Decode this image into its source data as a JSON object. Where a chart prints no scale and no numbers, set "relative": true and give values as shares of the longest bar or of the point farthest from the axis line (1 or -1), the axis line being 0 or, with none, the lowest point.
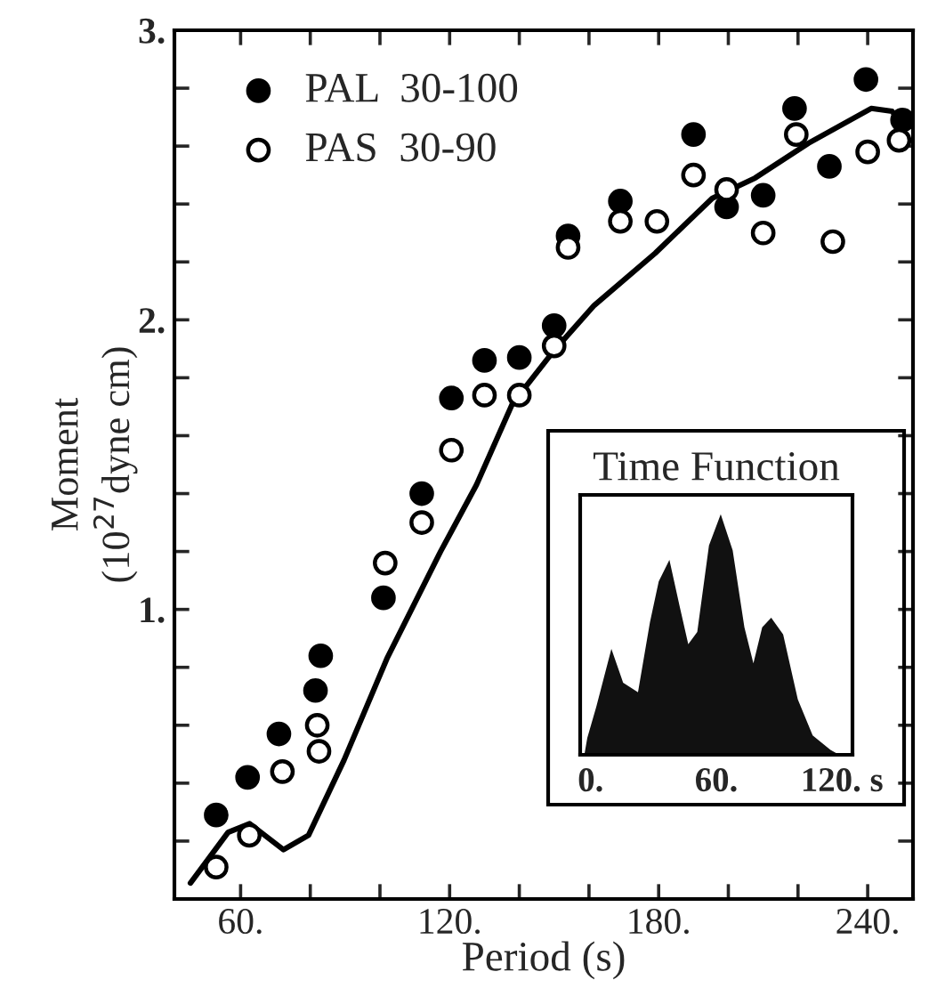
{
  "chart_data": [
    {
      "type": "scatter",
      "xlabel": "Period (s)",
      "ylabel": "Moment\n(10$^{27}$dyne cm)",
      "xlim": [
        41,
        253
      ],
      "ylim": [
        0,
        3
      ],
      "xticks": [
        {
          "value": 60,
          "label": "60."
        },
        {
          "value": 80,
          "label": null
        },
        {
          "value": 100,
          "label": null
        },
        {
          "value": 120,
          "label": "120."
        },
        {
          "value": 140,
          "label": null
        },
        {
          "value": 160,
          "label": null
        },
        {
          "value": 180,
          "label": "180."
        },
        {
          "value": 200,
          "label": null
        },
        {
          "value": 220,
          "label": null
        },
        {
          "value": 240,
          "label": "240."
        }
      ],
      "yticks": [
        {
          "value": 0.2,
          "label": null
        },
        {
          "value": 0.4,
          "label": null
        },
        {
          "value": 0.6,
          "label": null
        },
        {
          "value": 0.8,
          "label": null
        },
        {
          "value": 1,
          "label": "1."
        },
        {
          "value": 1.2,
          "label": null
        },
        {
          "value": 1.4,
          "label": null
        },
        {
          "value": 1.6,
          "label": null
        },
        {
          "value": 1.8,
          "label": null
        },
        {
          "value": 2,
          "label": "2."
        },
        {
          "value": 2.2,
          "label": null
        },
        {
          "value": 2.4,
          "label": null
        },
        {
          "value": 2.6,
          "label": null
        },
        {
          "value": 2.8,
          "label": null
        },
        {
          "value": 3,
          "label": "3."
        }
      ],
      "legend": "top left",
      "grid": false,
      "series": [
        {
          "name": "PAL  30-100",
          "type": "scatter",
          "marker": "circle",
          "color": "#000000",
          "x": [
            53,
            62,
            71,
            81.5,
            83,
            101,
            112,
            120.5,
            130,
            140,
            150,
            154,
            169,
            190,
            199.5,
            210,
            219,
            229,
            239.5,
            250
          ],
          "values": [
            0.29,
            0.42,
            0.57,
            0.72,
            0.84,
            1.04,
            1.4,
            1.73,
            1.86,
            1.87,
            1.98,
            2.29,
            2.41,
            2.64,
            2.39,
            2.43,
            2.73,
            2.53,
            2.83,
            2.69
          ]
        },
        {
          "name": "PAS  30-90",
          "type": "scatter",
          "marker": "circle",
          "color": "#ffffff",
          "x": [
            53,
            62.5,
            72,
            82.5,
            82,
            101.5,
            112,
            120.5,
            130,
            140,
            150,
            154,
            169,
            179.5,
            190,
            199.5,
            210,
            219.5,
            230,
            240,
            249
          ],
          "values": [
            0.11,
            0.22,
            0.44,
            0.51,
            0.6,
            1.16,
            1.3,
            1.55,
            1.74,
            1.74,
            1.91,
            2.25,
            2.34,
            2.34,
            2.5,
            2.45,
            2.3,
            2.64,
            2.27,
            2.58,
            2.62
          ]
        },
        {
          "type": "line",
          "marker": "none",
          "color": "#000000",
          "x": [
            45.6,
            56.4,
            62.6,
            72.3,
            79.5,
            89.7,
            102,
            117.4,
            127.7,
            138,
            149.7,
            161.5,
            179,
            195.4,
            207.7,
            223,
            241,
            247,
            249.7
          ],
          "values": [
            0.055,
            0.23,
            0.26,
            0.17,
            0.22,
            0.48,
            0.83,
            1.2,
            1.43,
            1.71,
            1.89,
            2.05,
            2.23,
            2.42,
            2.49,
            2.61,
            2.73,
            2.72,
            2.68
          ]
        }
      ]
    },
    {
      "type": "area",
      "title": "Time Function",
      "relative": true,
      "xlim": [
        -5,
        125
      ],
      "xticks": [
        {
          "value": 0,
          "label": "0."
        },
        {
          "value": 60,
          "label": "60."
        },
        {
          "value": 120,
          "label": "120. s"
        }
      ],
      "series": [
        {
          "color": "#111111",
          "x": [
            -3,
            -1.6,
            2.7,
            9.9,
            15.5,
            22.6,
            28.3,
            32.5,
            37.6,
            42.4,
            46.6,
            50.9,
            56.5,
            62.1,
            67.8,
            73.4,
            77.7,
            81.9,
            86.2,
            91.9,
            98.9,
            106,
            114.5,
            118.7
          ],
          "values": [
            0,
            0.07,
            0.2,
            0.44,
            0.3,
            0.26,
            0.55,
            0.72,
            0.81,
            0.62,
            0.46,
            0.51,
            0.87,
            1.0,
            0.85,
            0.53,
            0.38,
            0.53,
            0.57,
            0.5,
            0.23,
            0.08,
            0.02,
            0
          ]
        }
      ]
    }
  ]
}
